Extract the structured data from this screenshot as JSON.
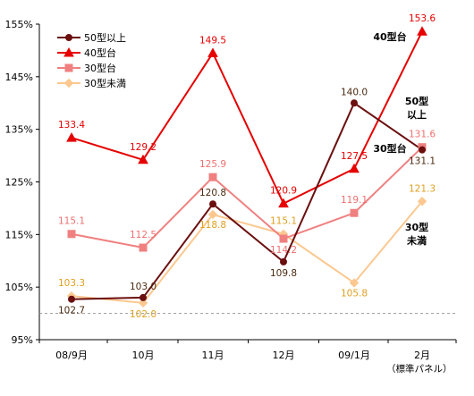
{
  "chart_data": {
    "type": "line",
    "categories": [
      "08/9月",
      "10月",
      "11月",
      "12月",
      "09/1月",
      "2月"
    ],
    "ylim": [
      95,
      155
    ],
    "yticks": [
      "95%",
      "105%",
      "115%",
      "125%",
      "135%",
      "145%",
      "155%"
    ],
    "reference_line": 100,
    "grid": false,
    "legend_position": "top-left",
    "note": "（標準パネル）",
    "series": [
      {
        "name": "50型以上",
        "color": "#6b0f0f",
        "marker": "circle",
        "values": [
          102.7,
          103.0,
          120.8,
          109.8,
          140.0,
          131.1
        ],
        "labels": [
          "102.7",
          "103.0",
          "120.8",
          "109.8",
          "140.0",
          "131.1"
        ],
        "label_color": "#4a2a10",
        "side_label": [
          "50型",
          "以上"
        ]
      },
      {
        "name": "40型台",
        "color": "#e60000",
        "marker": "triangle",
        "values": [
          133.4,
          129.2,
          149.5,
          120.9,
          127.5,
          153.6
        ],
        "labels": [
          "133.4",
          "129.2",
          "149.5",
          "120.9",
          "127.5",
          "153.6"
        ],
        "label_color": "#e60000",
        "side_label": [
          "40型台"
        ]
      },
      {
        "name": "30型台",
        "color": "#f08080",
        "marker": "square",
        "values": [
          115.1,
          112.5,
          125.9,
          114.2,
          119.1,
          131.6
        ],
        "labels": [
          "115.1",
          "112.5",
          "125.9",
          "114.2",
          "119.1",
          "131.6"
        ],
        "label_color": "#ee7070",
        "side_label": [
          "30型台"
        ]
      },
      {
        "name": "30型未満",
        "color": "#fcc890",
        "marker": "diamond",
        "values": [
          103.3,
          102.0,
          118.8,
          115.1,
          105.8,
          121.3
        ],
        "labels": [
          "103.3",
          "102.0",
          "118.8",
          "115.1",
          "105.8",
          "121.3"
        ],
        "label_color": "#e0a020",
        "side_label": [
          "30型",
          "未満"
        ]
      }
    ]
  }
}
